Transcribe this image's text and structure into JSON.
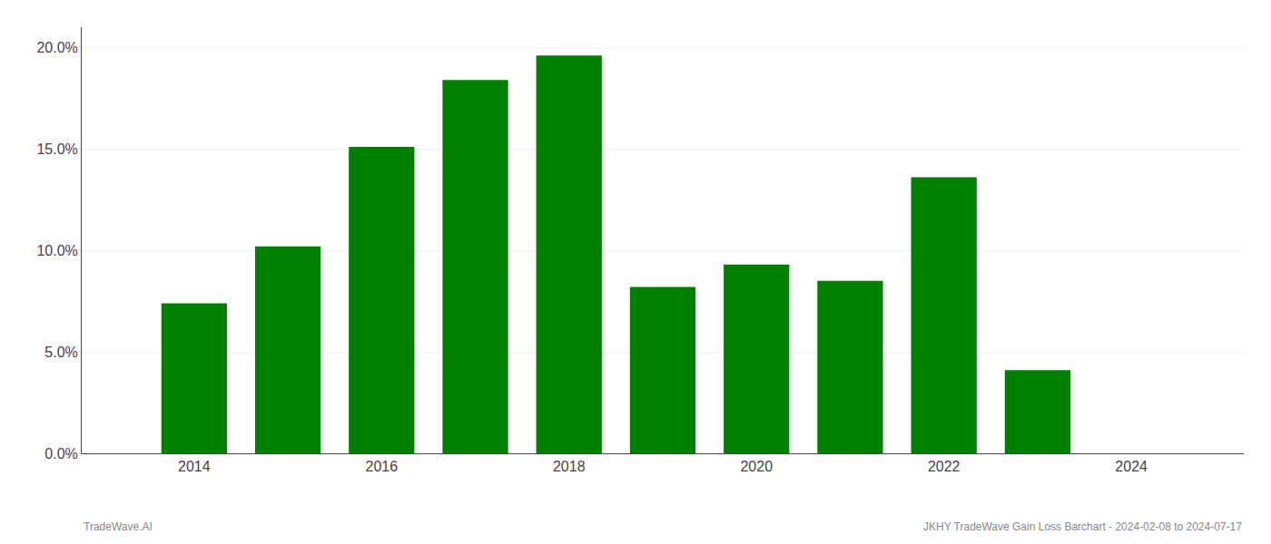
{
  "chart_data": {
    "type": "bar",
    "x": [
      2014,
      2015,
      2016,
      2017,
      2018,
      2019,
      2020,
      2021,
      2022,
      2023
    ],
    "values": [
      0.074,
      0.102,
      0.151,
      0.184,
      0.196,
      0.082,
      0.093,
      0.085,
      0.136,
      0.041
    ],
    "color": "#008000",
    "xlim": [
      2012.8,
      2025.2
    ],
    "xticks": [
      2014,
      2016,
      2018,
      2020,
      2022,
      2024
    ],
    "ylim": [
      0,
      0.21
    ],
    "yticks": [
      {
        "value": 0.0,
        "label": "0.0%"
      },
      {
        "value": 0.05,
        "label": "5.0%"
      },
      {
        "value": 0.1,
        "label": "10.0%"
      },
      {
        "value": 0.15,
        "label": "15.0%"
      },
      {
        "value": 0.2,
        "label": "20.0%"
      }
    ],
    "grid": true,
    "annotations": [
      "TradeWave.AI",
      "JKHY TradeWave Gain Loss Barchart - 2024-02-08 to 2024-07-17"
    ]
  }
}
